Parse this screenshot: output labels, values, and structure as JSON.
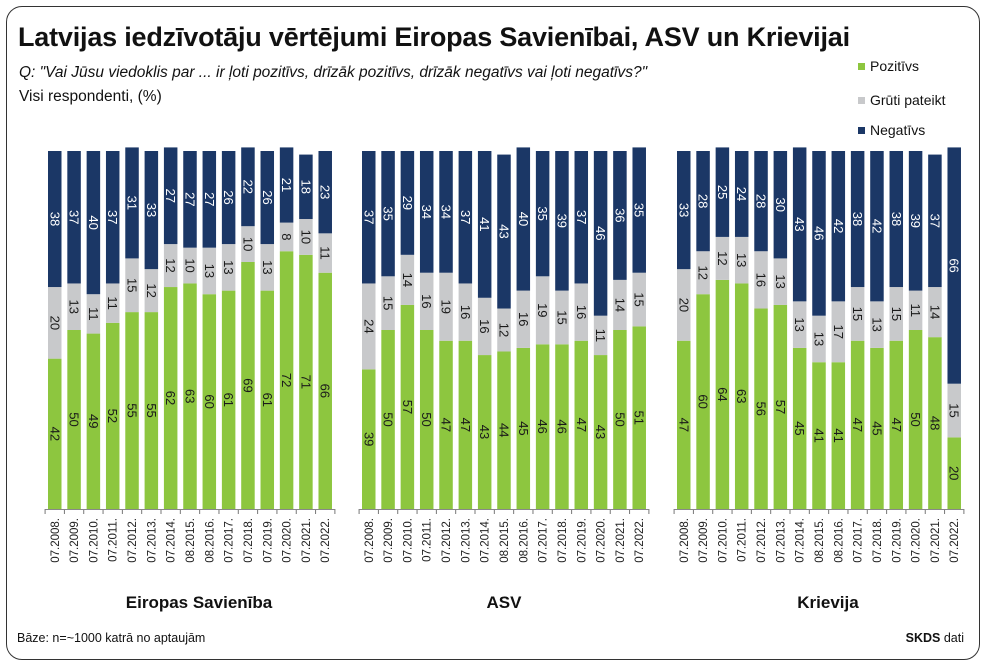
{
  "header": {
    "title": "Latvijas iedzīvotāju vērtējumi Eiropas Savienībai, ASV un Krievijai",
    "question": "Q: \"Vai Jūsu viedoklis par ... ir ļoti pozitīvs, drīzāk pozitīvs, drīzāk negatīvs vai ļoti negatīvs?\"",
    "subtitle": "Visi respondenti,  (%)"
  },
  "footer": {
    "base": "Bāze: n=~1000 katrā no aptaujām",
    "source_brand": "SKDS",
    "source_suffix": " dati"
  },
  "colors": {
    "positive": "#8dc63f",
    "neutral": "#c8c9cb",
    "negative": "#1b3766",
    "label": "#1a1a1a",
    "label_on_dark": "#ffffff"
  },
  "chart_data": {
    "type": "bar",
    "stacked": true,
    "orientation": "vertical",
    "ylim": [
      0,
      100
    ],
    "legend_position": "top-right",
    "legend": [
      "Pozitīvs",
      "Grūti pateikt",
      "Negatīvs"
    ],
    "groups": [
      {
        "name": "Eiropas Savienība",
        "categories": [
          "07.2008.",
          "07.2009.",
          "07.2010.",
          "07.2011.",
          "07.2012.",
          "07.2013.",
          "07.2014.",
          "08.2015.",
          "08.2016.",
          "07.2017.",
          "07.2018.",
          "07.2019.",
          "07.2020.",
          "07.2021.",
          "07.2022."
        ],
        "series": [
          {
            "name": "Pozitīvs",
            "values": [
              42,
              50,
              49,
              52,
              55,
              55,
              62,
              63,
              60,
              61,
              69,
              61,
              72,
              71,
              66
            ]
          },
          {
            "name": "Grūti pateikt",
            "values": [
              20,
              13,
              11,
              11,
              15,
              12,
              12,
              10,
              13,
              13,
              10,
              13,
              8,
              10,
              11
            ]
          },
          {
            "name": "Negatīvs",
            "values": [
              38,
              37,
              40,
              37,
              31,
              33,
              27,
              27,
              27,
              26,
              22,
              26,
              21,
              18,
              23
            ]
          }
        ]
      },
      {
        "name": "ASV",
        "categories": [
          "07.2008.",
          "07.2009.",
          "07.2010.",
          "07.2011.",
          "07.2012.",
          "07.2013.",
          "07.2014.",
          "08.2015.",
          "08.2016.",
          "07.2017.",
          "07.2018.",
          "07.2019.",
          "07.2020.",
          "07.2021.",
          "07.2022."
        ],
        "series": [
          {
            "name": "Pozitīvs",
            "values": [
              39,
              50,
              57,
              50,
              47,
              47,
              43,
              44,
              45,
              46,
              46,
              47,
              43,
              50,
              51
            ]
          },
          {
            "name": "Grūti pateikt",
            "values": [
              24,
              15,
              14,
              16,
              19,
              16,
              16,
              12,
              16,
              19,
              15,
              16,
              11,
              14,
              15
            ]
          },
          {
            "name": "Negatīvs",
            "values": [
              37,
              35,
              29,
              34,
              34,
              37,
              41,
              43,
              40,
              35,
              39,
              37,
              46,
              36,
              35
            ]
          }
        ]
      },
      {
        "name": "Krievija",
        "categories": [
          "07.2008.",
          "07.2009.",
          "07.2010.",
          "07.2011.",
          "07.2012.",
          "07.2013.",
          "07.2014.",
          "08.2015.",
          "08.2016.",
          "07.2017.",
          "07.2018.",
          "07.2019.",
          "07.2020.",
          "07.2021.",
          "07.2022."
        ],
        "series": [
          {
            "name": "Pozitīvs",
            "values": [
              47,
              60,
              64,
              63,
              56,
              57,
              45,
              41,
              41,
              47,
              45,
              47,
              50,
              48,
              20
            ]
          },
          {
            "name": "Grūti pateikt",
            "values": [
              20,
              12,
              12,
              13,
              16,
              13,
              13,
              13,
              17,
              15,
              13,
              15,
              11,
              14,
              15
            ]
          },
          {
            "name": "Negatīvs",
            "values": [
              33,
              28,
              25,
              24,
              28,
              30,
              43,
              46,
              42,
              38,
              42,
              38,
              39,
              37,
              66
            ]
          }
        ]
      }
    ]
  }
}
